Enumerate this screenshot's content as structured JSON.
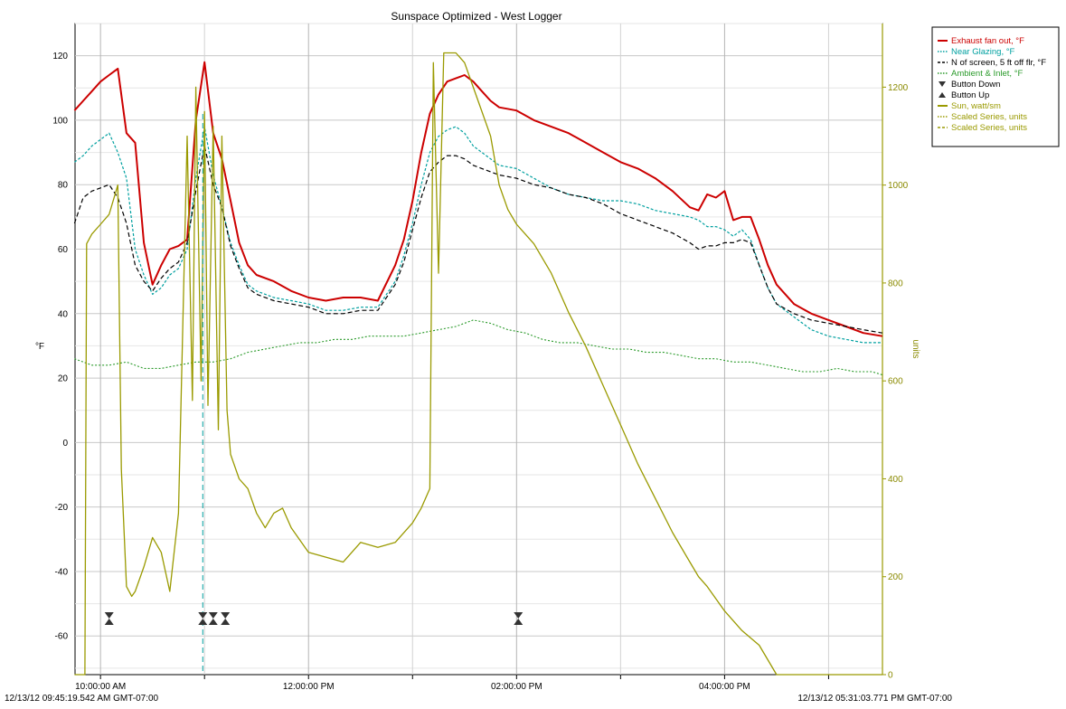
{
  "chart_data": {
    "type": "line",
    "title": "Sunspace Optimized - West Logger",
    "ylabel": "°F",
    "y2label": "units",
    "ylim": [
      -72,
      130
    ],
    "y2lim": [
      0,
      1330
    ],
    "xlim": [
      "09:45:19",
      "17:31:04"
    ],
    "grid": true,
    "legend_position": "outside-top-right",
    "x_ticks": [
      "10:00:00 AM",
      "12:00:00 PM",
      "02:00:00 PM",
      "04:00:00 PM"
    ],
    "y_ticks": [
      "120",
      "100",
      "80",
      "60",
      "40",
      "20",
      "0",
      "-20",
      "-40",
      "-60"
    ],
    "y2_ticks": [
      "1200",
      "1000",
      "800",
      "600",
      "400",
      "200",
      "0"
    ],
    "footer_left": "12/13/12 09:45:19.542 AM GMT-07:00",
    "footer_right": "12/13/12 05:31:03.771 PM GMT-07:00",
    "legend": [
      {
        "label": "Exhaust fan out, °F",
        "color": "#cc0000",
        "style": "solid"
      },
      {
        "label": "Near Glazing, °F",
        "color": "#00a0a0",
        "style": "dotted"
      },
      {
        "label": "N of screen, 5 ft off flr, °F",
        "color": "#000000",
        "style": "dashed"
      },
      {
        "label": "Ambient & Inlet, °F",
        "color": "#2a9a2a",
        "style": "dotted"
      },
      {
        "label": "Button Down",
        "color": "#333333",
        "style": "marker-down"
      },
      {
        "label": "Button Up",
        "color": "#333333",
        "style": "marker-up"
      },
      {
        "label": "Sun, watt/sm",
        "color": "#9a9a00",
        "style": "solid"
      },
      {
        "label": "Scaled Series, units",
        "color": "#9a9a00",
        "style": "dotted"
      },
      {
        "label": "Scaled Series, units",
        "color": "#9a9a00",
        "style": "dashed"
      }
    ],
    "series": [
      {
        "name": "Exhaust fan out, °F",
        "axis": "left",
        "color": "#cc0000",
        "x": [
          "09:45",
          "09:50",
          "09:55",
          "10:00",
          "10:05",
          "10:10",
          "10:15",
          "10:20",
          "10:25",
          "10:30",
          "10:35",
          "10:40",
          "10:45",
          "10:50",
          "10:55",
          "11:00",
          "11:05",
          "11:10",
          "11:15",
          "11:20",
          "11:25",
          "11:30",
          "11:40",
          "11:50",
          "12:00",
          "12:10",
          "12:20",
          "12:30",
          "12:40",
          "12:50",
          "12:55",
          "13:00",
          "13:05",
          "13:10",
          "13:15",
          "13:20",
          "13:25",
          "13:30",
          "13:35",
          "13:40",
          "13:45",
          "13:50",
          "14:00",
          "14:10",
          "14:20",
          "14:30",
          "14:40",
          "14:50",
          "15:00",
          "15:10",
          "15:20",
          "15:30",
          "15:40",
          "15:45",
          "15:50",
          "15:55",
          "16:00",
          "16:05",
          "16:10",
          "16:15",
          "16:20",
          "16:25",
          "16:30",
          "16:40",
          "16:50",
          "17:00",
          "17:10",
          "17:20",
          "17:31"
        ],
        "values": [
          103,
          106,
          109,
          112,
          114,
          116,
          96,
          93,
          62,
          49,
          55,
          60,
          61,
          63,
          100,
          118,
          96,
          88,
          75,
          62,
          55,
          52,
          50,
          47,
          45,
          44,
          45,
          45,
          44,
          55,
          63,
          75,
          90,
          102,
          108,
          112,
          113,
          114,
          112,
          109,
          106,
          104,
          103,
          100,
          98,
          96,
          93,
          90,
          87,
          85,
          82,
          78,
          73,
          72,
          77,
          76,
          78,
          69,
          70,
          70,
          63,
          55,
          49,
          43,
          40,
          38,
          36,
          34,
          33
        ]
      },
      {
        "name": "Near Glazing, °F",
        "axis": "left",
        "color": "#00a0a0",
        "x": [
          "09:45",
          "09:50",
          "09:55",
          "10:00",
          "10:05",
          "10:10",
          "10:15",
          "10:20",
          "10:25",
          "10:30",
          "10:35",
          "10:40",
          "10:45",
          "10:50",
          "10:55",
          "11:00",
          "11:05",
          "11:10",
          "11:15",
          "11:20",
          "11:25",
          "11:30",
          "11:40",
          "11:50",
          "12:00",
          "12:10",
          "12:20",
          "12:30",
          "12:40",
          "12:50",
          "12:55",
          "13:00",
          "13:05",
          "13:10",
          "13:15",
          "13:20",
          "13:25",
          "13:30",
          "13:35",
          "13:40",
          "13:45",
          "13:50",
          "14:00",
          "14:10",
          "14:20",
          "14:30",
          "14:40",
          "14:50",
          "15:00",
          "15:10",
          "15:20",
          "15:30",
          "15:40",
          "15:45",
          "15:50",
          "15:55",
          "16:00",
          "16:05",
          "16:10",
          "16:15",
          "16:20",
          "16:25",
          "16:30",
          "16:40",
          "16:50",
          "17:00",
          "17:10",
          "17:20",
          "17:31"
        ],
        "values": [
          87,
          89,
          92,
          94,
          96,
          90,
          82,
          60,
          52,
          46,
          48,
          52,
          54,
          60,
          82,
          98,
          83,
          73,
          62,
          55,
          49,
          47,
          45,
          44,
          43,
          41,
          41,
          42,
          42,
          50,
          58,
          68,
          80,
          90,
          95,
          97,
          98,
          96,
          92,
          90,
          88,
          86,
          85,
          82,
          79,
          77,
          76,
          75,
          75,
          74,
          72,
          71,
          70,
          69,
          67,
          67,
          66,
          64,
          66,
          63,
          55,
          48,
          43,
          39,
          35,
          33,
          32,
          31,
          31
        ]
      },
      {
        "name": "N of screen, 5 ft off flr, °F",
        "axis": "left",
        "color": "#000000",
        "x": [
          "09:45",
          "09:50",
          "09:55",
          "10:00",
          "10:05",
          "10:10",
          "10:15",
          "10:20",
          "10:25",
          "10:30",
          "10:35",
          "10:40",
          "10:45",
          "10:50",
          "10:55",
          "11:00",
          "11:05",
          "11:10",
          "11:15",
          "11:20",
          "11:25",
          "11:30",
          "11:40",
          "11:50",
          "12:00",
          "12:10",
          "12:20",
          "12:30",
          "12:40",
          "12:50",
          "12:55",
          "13:00",
          "13:05",
          "13:10",
          "13:15",
          "13:20",
          "13:25",
          "13:30",
          "13:35",
          "13:40",
          "13:45",
          "13:50",
          "14:00",
          "14:10",
          "14:20",
          "14:30",
          "14:40",
          "14:50",
          "15:00",
          "15:10",
          "15:20",
          "15:30",
          "15:40",
          "15:45",
          "15:50",
          "15:55",
          "16:00",
          "16:05",
          "16:10",
          "16:15",
          "16:20",
          "16:25",
          "16:30",
          "16:40",
          "16:50",
          "17:00",
          "17:10",
          "17:20",
          "17:31"
        ],
        "values": [
          68,
          76,
          78,
          79,
          80,
          76,
          68,
          55,
          50,
          47,
          51,
          54,
          56,
          62,
          78,
          92,
          80,
          73,
          61,
          54,
          48,
          46,
          44,
          43,
          42,
          40,
          40,
          41,
          41,
          49,
          56,
          66,
          76,
          84,
          87,
          89,
          89,
          88,
          86,
          85,
          84,
          83,
          82,
          80,
          79,
          77,
          76,
          74,
          71,
          69,
          67,
          65,
          62,
          60,
          61,
          61,
          62,
          62,
          63,
          62,
          55,
          48,
          43,
          40,
          38,
          37,
          36,
          35,
          34
        ]
      },
      {
        "name": "Ambient & Inlet, °F",
        "axis": "left",
        "color": "#2a9a2a",
        "x": [
          "09:45",
          "09:55",
          "10:05",
          "10:15",
          "10:25",
          "10:35",
          "10:45",
          "10:55",
          "11:05",
          "11:15",
          "11:25",
          "11:35",
          "11:45",
          "11:55",
          "12:05",
          "12:15",
          "12:25",
          "12:35",
          "12:45",
          "12:55",
          "13:05",
          "13:15",
          "13:25",
          "13:35",
          "13:45",
          "13:55",
          "14:05",
          "14:15",
          "14:25",
          "14:35",
          "14:45",
          "14:55",
          "15:05",
          "15:15",
          "15:25",
          "15:35",
          "15:45",
          "15:55",
          "16:05",
          "16:15",
          "16:25",
          "16:35",
          "16:45",
          "16:55",
          "17:05",
          "17:15",
          "17:25",
          "17:31"
        ],
        "values": [
          26,
          24,
          24,
          25,
          23,
          23,
          24,
          25,
          25,
          26,
          28,
          29,
          30,
          31,
          31,
          32,
          32,
          33,
          33,
          33,
          34,
          35,
          36,
          38,
          37,
          35,
          34,
          32,
          31,
          31,
          30,
          29,
          29,
          28,
          28,
          27,
          26,
          26,
          25,
          25,
          24,
          23,
          22,
          22,
          23,
          22,
          22,
          21
        ]
      },
      {
        "name": "Sun, watt/sm",
        "axis": "right",
        "color": "#9a9a00",
        "x": [
          "09:45",
          "09:51",
          "09:52",
          "09:55",
          "10:00",
          "10:05",
          "10:10",
          "10:12",
          "10:15",
          "10:18",
          "10:20",
          "10:25",
          "10:30",
          "10:35",
          "10:40",
          "10:45",
          "10:50",
          "10:53",
          "10:55",
          "10:58",
          "11:00",
          "11:02",
          "11:05",
          "11:08",
          "11:10",
          "11:13",
          "11:15",
          "11:20",
          "11:25",
          "11:30",
          "11:35",
          "11:40",
          "11:45",
          "11:50",
          "12:00",
          "12:10",
          "12:20",
          "12:30",
          "12:40",
          "12:50",
          "13:00",
          "13:05",
          "13:10",
          "13:12",
          "13:15",
          "13:18",
          "13:20",
          "13:25",
          "13:30",
          "13:35",
          "13:40",
          "13:45",
          "13:50",
          "13:55",
          "14:00",
          "14:10",
          "14:20",
          "14:30",
          "14:40",
          "14:50",
          "15:00",
          "15:10",
          "15:20",
          "15:30",
          "15:40",
          "15:45",
          "15:50",
          "16:00",
          "16:10",
          "16:20",
          "16:30",
          "16:40",
          "16:50",
          "17:00",
          "17:10",
          "17:20",
          "17:31"
        ],
        "values": [
          0,
          0,
          880,
          900,
          920,
          940,
          1000,
          420,
          180,
          160,
          170,
          220,
          280,
          250,
          170,
          330,
          1100,
          560,
          1200,
          600,
          1150,
          550,
          1120,
          500,
          1100,
          540,
          450,
          400,
          380,
          330,
          300,
          330,
          340,
          300,
          250,
          240,
          230,
          270,
          260,
          270,
          310,
          340,
          380,
          1250,
          820,
          1270,
          1270,
          1270,
          1250,
          1200,
          1150,
          1100,
          1000,
          950,
          920,
          880,
          820,
          740,
          670,
          590,
          510,
          430,
          360,
          290,
          230,
          200,
          180,
          130,
          90,
          60,
          0,
          0,
          0,
          0,
          0,
          0,
          0
        ]
      }
    ],
    "markers": [
      {
        "time": "10:05",
        "type": "hourglass"
      },
      {
        "time": "10:59",
        "type": "hourglass"
      },
      {
        "time": "11:05",
        "type": "hourglass"
      },
      {
        "time": "11:12",
        "type": "hourglass"
      },
      {
        "time": "14:01",
        "type": "hourglass"
      }
    ],
    "cursor_time": "10:59"
  }
}
